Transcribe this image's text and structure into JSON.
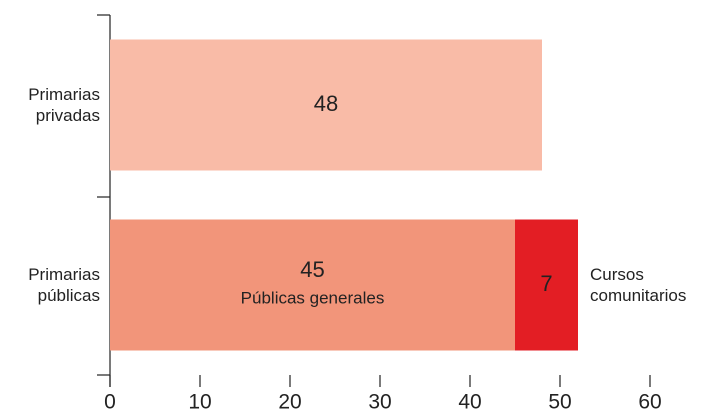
{
  "chart_data": {
    "type": "stacked_barh",
    "categories": [
      "Primarias privadas",
      "Primarias públicas"
    ],
    "series": [
      {
        "color": "#f9bba7",
        "values": [
          48,
          null
        ]
      },
      {
        "name": "Públicas generales",
        "color": "#f2957a",
        "values": [
          null,
          45
        ]
      },
      {
        "name": "Cursos comunitarios",
        "color": "#e31e24",
        "values": [
          null,
          7
        ]
      }
    ],
    "xlim": [
      0,
      60
    ],
    "xticks": [
      0,
      10,
      20,
      30,
      40,
      50,
      60
    ]
  }
}
